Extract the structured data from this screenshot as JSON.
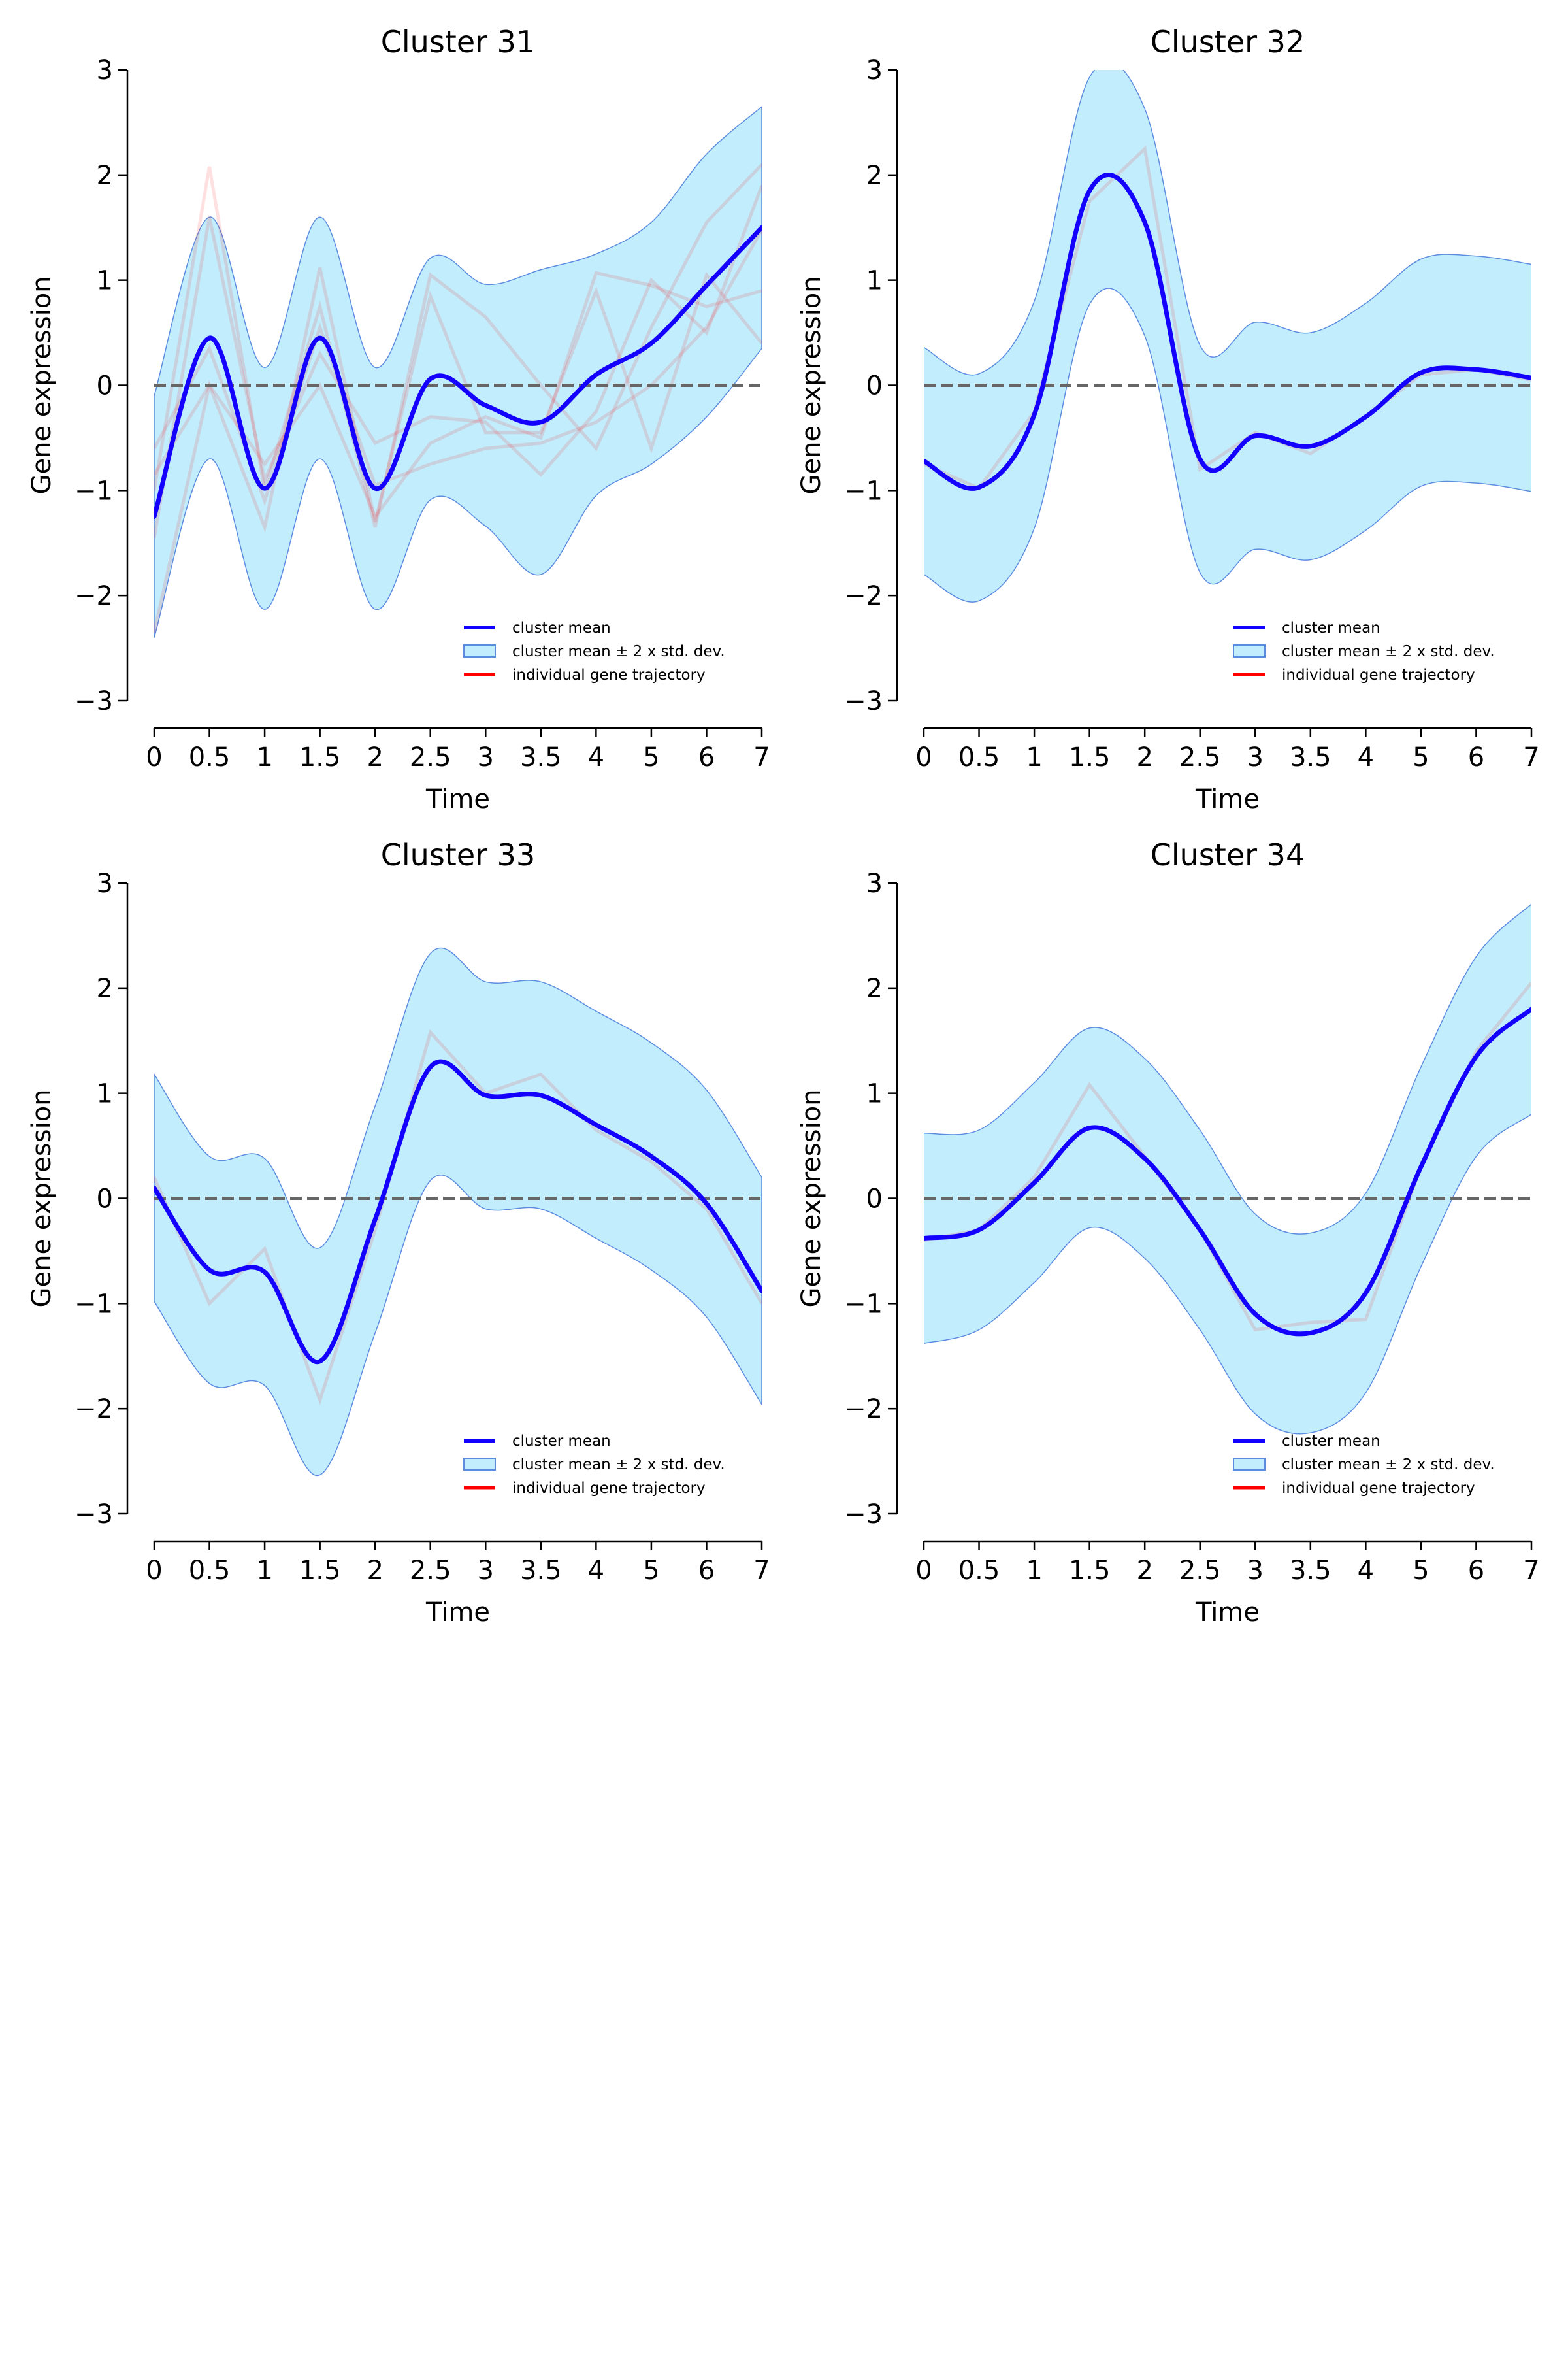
{
  "figure": {
    "zero_line_color": "#666666",
    "mean_color": "#1400ff",
    "band_fill": "#c2edfc",
    "band_edge": "#5b8ce0",
    "trajectory_color": "#ff0000",
    "trajectory_opacity": 0.12
  },
  "chart_data": [
    {
      "type": "line",
      "title": "Cluster 31",
      "xlabel": "Time",
      "ylabel": "Gene expression",
      "xlim": [
        0,
        7
      ],
      "ylim": [
        -3,
        3
      ],
      "x_ticks": [
        0,
        0.5,
        1,
        1.5,
        2,
        2.5,
        3,
        3.5,
        4,
        5,
        6,
        7
      ],
      "x_tick_labels": [
        "0",
        "0.5",
        "1",
        "1.5",
        "2",
        "2.5",
        "3",
        "3.5",
        "4",
        "5",
        "6",
        "7"
      ],
      "y_ticks": [
        -3,
        -2,
        -1,
        0,
        1,
        2,
        3
      ],
      "y_tick_labels": [
        "−3",
        "−2",
        "−1",
        "0",
        "1",
        "2",
        "3"
      ],
      "legend": {
        "position": "lower right",
        "entries": [
          "cluster mean",
          "cluster mean ± 2 x std. dev.",
          "individual gene trajectory"
        ]
      },
      "time_points": [
        0,
        0.5,
        1,
        1.5,
        2,
        2.5,
        3,
        3.5,
        4,
        5,
        6,
        7
      ],
      "mean": [
        -1.25,
        0.45,
        -0.98,
        0.45,
        -0.98,
        0.06,
        -0.19,
        -0.35,
        0.1,
        0.4,
        0.95,
        1.5
      ],
      "std2": [
        1.15,
        1.15,
        1.15,
        1.15,
        1.15,
        1.15,
        1.15,
        1.45,
        1.15,
        1.15,
        1.25,
        1.15
      ],
      "trajectories": [
        [
          -1.0,
          2.08,
          -1.0,
          0.75,
          -1.35,
          1.05,
          0.65,
          0.0,
          -0.6,
          0.55,
          1.55,
          2.1
        ],
        [
          -2.35,
          0.0,
          -1.35,
          1.12,
          -1.3,
          0.85,
          -0.45,
          -0.45,
          0.9,
          -0.6,
          1.05,
          0.4
        ],
        [
          -1.45,
          1.6,
          -0.9,
          0.3,
          -0.55,
          -0.3,
          -0.35,
          -0.85,
          -0.25,
          1.0,
          0.5,
          1.9
        ],
        [
          -0.85,
          0.0,
          -0.75,
          0.0,
          -1.25,
          -0.55,
          -0.3,
          -0.5,
          1.07,
          0.95,
          0.75,
          0.9
        ],
        [
          -0.6,
          0.35,
          -1.1,
          0.55,
          -0.95,
          -0.75,
          -0.6,
          -0.55,
          -0.35,
          0.0,
          0.55,
          1.48
        ]
      ]
    },
    {
      "type": "line",
      "title": "Cluster 32",
      "xlabel": "Time",
      "ylabel": "Gene expression",
      "xlim": [
        0,
        7
      ],
      "ylim": [
        -3,
        3
      ],
      "x_ticks": [
        0,
        0.5,
        1,
        1.5,
        2,
        2.5,
        3,
        3.5,
        4,
        5,
        6,
        7
      ],
      "x_tick_labels": [
        "0",
        "0.5",
        "1",
        "1.5",
        "2",
        "2.5",
        "3",
        "3.5",
        "4",
        "5",
        "6",
        "7"
      ],
      "y_ticks": [
        -3,
        -2,
        -1,
        0,
        1,
        2,
        3
      ],
      "y_tick_labels": [
        "−3",
        "−2",
        "−1",
        "0",
        "1",
        "2",
        "3"
      ],
      "legend": {
        "position": "lower right",
        "entries": [
          "cluster mean",
          "cluster mean ± 2 x std. dev.",
          "individual gene trajectory"
        ]
      },
      "time_points": [
        0,
        0.5,
        1,
        1.5,
        2,
        2.5,
        3,
        3.5,
        4,
        5,
        6,
        7
      ],
      "mean": [
        -0.72,
        -0.97,
        -0.28,
        1.85,
        1.55,
        -0.7,
        -0.48,
        -0.58,
        -0.3,
        0.12,
        0.15,
        0.07
      ],
      "std2": [
        1.08,
        1.08,
        1.08,
        1.08,
        1.08,
        1.08,
        1.08,
        1.08,
        1.08,
        1.08,
        1.08,
        1.08
      ],
      "trajectories": [
        [
          -0.75,
          -0.98,
          -0.25,
          1.75,
          2.25,
          -0.8,
          -0.45,
          -0.65,
          -0.3,
          0.1,
          0.15,
          0.05
        ]
      ]
    },
    {
      "type": "line",
      "title": "Cluster 33",
      "xlabel": "Time",
      "ylabel": "Gene expression",
      "xlim": [
        0,
        7
      ],
      "ylim": [
        -3,
        3
      ],
      "x_ticks": [
        0,
        0.5,
        1,
        1.5,
        2,
        2.5,
        3,
        3.5,
        4,
        5,
        6,
        7
      ],
      "x_tick_labels": [
        "0",
        "0.5",
        "1",
        "1.5",
        "2",
        "2.5",
        "3",
        "3.5",
        "4",
        "5",
        "6",
        "7"
      ],
      "y_ticks": [
        -3,
        -2,
        -1,
        0,
        1,
        2,
        3
      ],
      "y_tick_labels": [
        "−3",
        "−2",
        "−1",
        "0",
        "1",
        "2",
        "3"
      ],
      "legend": {
        "position": "lower right",
        "entries": [
          "cluster mean",
          "cluster mean ± 2 x std. dev.",
          "individual gene trajectory"
        ]
      },
      "time_points": [
        0,
        0.5,
        1,
        1.5,
        2,
        2.5,
        3,
        3.5,
        4,
        5,
        6,
        7
      ],
      "mean": [
        0.1,
        -0.68,
        -0.7,
        -1.55,
        -0.2,
        1.25,
        0.98,
        0.98,
        0.7,
        0.4,
        -0.05,
        -0.88
      ],
      "std2": [
        1.08,
        1.08,
        1.08,
        1.08,
        1.08,
        1.08,
        1.08,
        1.08,
        1.08,
        1.08,
        1.08,
        1.08
      ],
      "trajectories": [
        [
          0.2,
          -1.0,
          -0.48,
          -1.92,
          -0.3,
          1.58,
          1.0,
          1.18,
          0.65,
          0.35,
          -0.1,
          -1.0
        ]
      ]
    },
    {
      "type": "line",
      "title": "Cluster 34",
      "xlabel": "Time",
      "ylabel": "Gene expression",
      "xlim": [
        0,
        7
      ],
      "ylim": [
        -3,
        3
      ],
      "x_ticks": [
        0,
        0.5,
        1,
        1.5,
        2,
        2.5,
        3,
        3.5,
        4,
        5,
        6,
        7
      ],
      "x_tick_labels": [
        "0",
        "0.5",
        "1",
        "1.5",
        "2",
        "2.5",
        "3",
        "3.5",
        "4",
        "5",
        "6",
        "7"
      ],
      "y_ticks": [
        -3,
        -2,
        -1,
        0,
        1,
        2,
        3
      ],
      "y_tick_labels": [
        "−3",
        "−2",
        "−1",
        "0",
        "1",
        "2",
        "3"
      ],
      "legend": {
        "position": "lower right",
        "entries": [
          "cluster mean",
          "cluster mean ± 2 x std. dev.",
          "individual gene trajectory"
        ]
      },
      "time_points": [
        0,
        0.5,
        1,
        1.5,
        2,
        2.5,
        3,
        3.5,
        4,
        5,
        6,
        7
      ],
      "mean": [
        -0.38,
        -0.3,
        0.15,
        0.67,
        0.38,
        -0.3,
        -1.1,
        -1.28,
        -0.9,
        0.3,
        1.35,
        1.8
      ],
      "std2": [
        1.0,
        0.95,
        0.95,
        0.95,
        0.95,
        0.95,
        0.95,
        0.95,
        0.95,
        0.95,
        0.95,
        1.0
      ],
      "trajectories": [
        [
          -0.4,
          -0.3,
          0.2,
          1.08,
          0.4,
          -0.3,
          -1.25,
          -1.18,
          -1.15,
          0.3,
          1.4,
          2.05
        ]
      ]
    }
  ]
}
